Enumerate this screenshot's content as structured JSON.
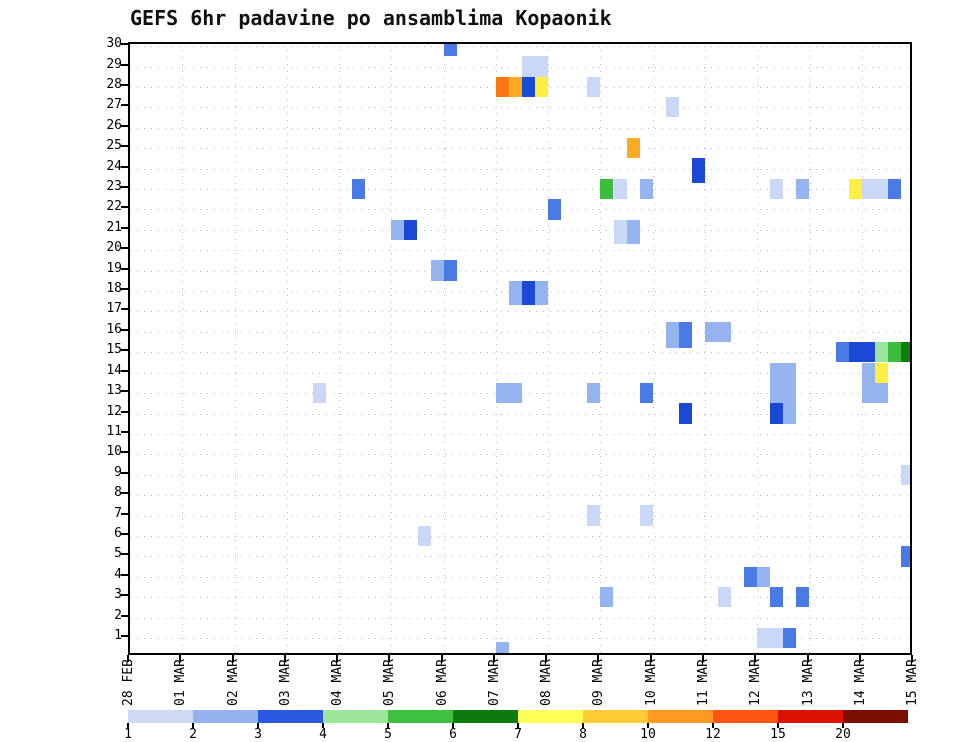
{
  "chart_data": {
    "type": "heatmap",
    "title": "GEFS 6hr padavine po ansamblima Kopaonik",
    "subtitle": "",
    "x_labels": [
      "28 FEB",
      "01 MAR",
      "02 MAR",
      "03 MAR",
      "04 MAR",
      "05 MAR",
      "06 MAR",
      "07 MAR",
      "08 MAR",
      "09 MAR",
      "10 MAR",
      "11 MAR",
      "12 MAR",
      "13 MAR",
      "14 MAR",
      "15 MAR"
    ],
    "steps_per_day": 4,
    "y_axis": {
      "min": 1,
      "max": 30,
      "tick_step": 1
    },
    "grid": true,
    "legend_position": "bottom",
    "palette": {
      "b1": "#c9d8f6",
      "b2": "#94b4f0",
      "b3": "#4a7ae6",
      "b4": "#1a49d6",
      "g1": "#9be49b",
      "g2": "#3cbe3c",
      "g3": "#0f7d0f",
      "y1": "#ffee44",
      "o1": "#ff7711",
      "o2": "#ffaa22"
    },
    "legend": {
      "labels": [
        "1",
        "2",
        "3",
        "4",
        "5",
        "6",
        "7",
        "8",
        "10",
        "12",
        "15",
        "20"
      ],
      "colors": [
        "#ced9f5",
        "#93b2ef",
        "#2a58e0",
        "#9ce69c",
        "#3fc03f",
        "#0e7a0e",
        "#ffff55",
        "#ffcc33",
        "#ff9922",
        "#ff5511",
        "#dd1100",
        "#7a0f00"
      ]
    },
    "cells": [
      {
        "t": 24,
        "r": 30,
        "c": "b3"
      },
      {
        "t": 30,
        "r": 29,
        "w": 2,
        "c": "b1"
      },
      {
        "t": 28,
        "r": 28,
        "c": "o1"
      },
      {
        "t": 29,
        "r": 28,
        "c": "o2"
      },
      {
        "t": 30,
        "r": 28,
        "c": "b4"
      },
      {
        "t": 31,
        "r": 28,
        "c": "y1"
      },
      {
        "t": 35,
        "r": 28,
        "c": "b1"
      },
      {
        "t": 41,
        "r": 27,
        "c": "b1"
      },
      {
        "t": 38,
        "r": 25,
        "c": "o2"
      },
      {
        "t": 43,
        "r": 24,
        "c": "b4",
        "h": 1.2
      },
      {
        "t": 17,
        "r": 23,
        "c": "b3"
      },
      {
        "t": 36,
        "r": 23,
        "c": "g2"
      },
      {
        "t": 37,
        "r": 23,
        "c": "b1"
      },
      {
        "t": 39,
        "r": 23,
        "c": "b2"
      },
      {
        "t": 49,
        "r": 23,
        "c": "b1"
      },
      {
        "t": 51,
        "r": 23,
        "c": "b2"
      },
      {
        "t": 55,
        "r": 23,
        "c": "y1"
      },
      {
        "t": 56,
        "r": 23,
        "w": 2,
        "c": "b1"
      },
      {
        "t": 58,
        "r": 23,
        "c": "b3"
      },
      {
        "t": 32,
        "r": 22,
        "c": "b3"
      },
      {
        "t": 20,
        "r": 21,
        "c": "b2"
      },
      {
        "t": 21,
        "r": 21,
        "c": "b4"
      },
      {
        "t": 37,
        "r": 21,
        "c": "b1",
        "h": 1.2
      },
      {
        "t": 38,
        "r": 21,
        "c": "b2",
        "h": 1.2
      },
      {
        "t": 23,
        "r": 19,
        "c": "b2"
      },
      {
        "t": 24,
        "r": 19,
        "c": "b3"
      },
      {
        "t": 29,
        "r": 18,
        "c": "b2",
        "h": 1.2
      },
      {
        "t": 30,
        "r": 18,
        "c": "b4",
        "h": 1.2
      },
      {
        "t": 31,
        "r": 18,
        "c": "b2",
        "h": 1.2
      },
      {
        "t": 41,
        "r": 16,
        "c": "b2",
        "h": 1.3
      },
      {
        "t": 42,
        "r": 16,
        "c": "b3",
        "h": 1.3
      },
      {
        "t": 44,
        "r": 16,
        "w": 2,
        "c": "b2"
      },
      {
        "t": 54,
        "r": 15,
        "c": "b3"
      },
      {
        "t": 55,
        "r": 15,
        "c": "b4"
      },
      {
        "t": 56,
        "r": 15,
        "c": "b4"
      },
      {
        "t": 57,
        "r": 15,
        "c": "g1"
      },
      {
        "t": 58,
        "r": 15,
        "c": "g2"
      },
      {
        "t": 59,
        "r": 15,
        "c": "g3"
      },
      {
        "t": 49,
        "r": 14,
        "c": "b2"
      },
      {
        "t": 50,
        "r": 14,
        "c": "b2"
      },
      {
        "t": 56,
        "r": 14,
        "c": "b2"
      },
      {
        "t": 57,
        "r": 14,
        "c": "y1"
      },
      {
        "t": 14,
        "r": 13,
        "c": "b1"
      },
      {
        "t": 28,
        "r": 13,
        "w": 2,
        "c": "b2"
      },
      {
        "t": 35,
        "r": 13,
        "c": "b2"
      },
      {
        "t": 39,
        "r": 13,
        "c": "b3"
      },
      {
        "t": 49,
        "r": 13,
        "c": "b2"
      },
      {
        "t": 50,
        "r": 13,
        "c": "b2"
      },
      {
        "t": 56,
        "r": 13,
        "w": 2,
        "c": "b2"
      },
      {
        "t": 42,
        "r": 12,
        "c": "b4"
      },
      {
        "t": 49,
        "r": 12,
        "c": "b4"
      },
      {
        "t": 50,
        "r": 12,
        "c": "b2"
      },
      {
        "t": 59,
        "r": 9,
        "c": "b1"
      },
      {
        "t": 35,
        "r": 7,
        "c": "b1"
      },
      {
        "t": 39,
        "r": 7,
        "c": "b1"
      },
      {
        "t": 22,
        "r": 6,
        "c": "b1"
      },
      {
        "t": 59,
        "r": 5,
        "c": "b3"
      },
      {
        "t": 47,
        "r": 4,
        "c": "b3"
      },
      {
        "t": 48,
        "r": 4,
        "c": "b2"
      },
      {
        "t": 36,
        "r": 3,
        "c": "b2"
      },
      {
        "t": 45,
        "r": 3,
        "c": "b1"
      },
      {
        "t": 49,
        "r": 3,
        "c": "b3"
      },
      {
        "t": 51,
        "r": 3,
        "c": "b3"
      },
      {
        "t": 48,
        "r": 1,
        "w": 2,
        "c": "b1"
      },
      {
        "t": 50,
        "r": 1,
        "c": "b3"
      },
      {
        "t": 28,
        "r": 0.3,
        "c": "b2"
      }
    ]
  }
}
